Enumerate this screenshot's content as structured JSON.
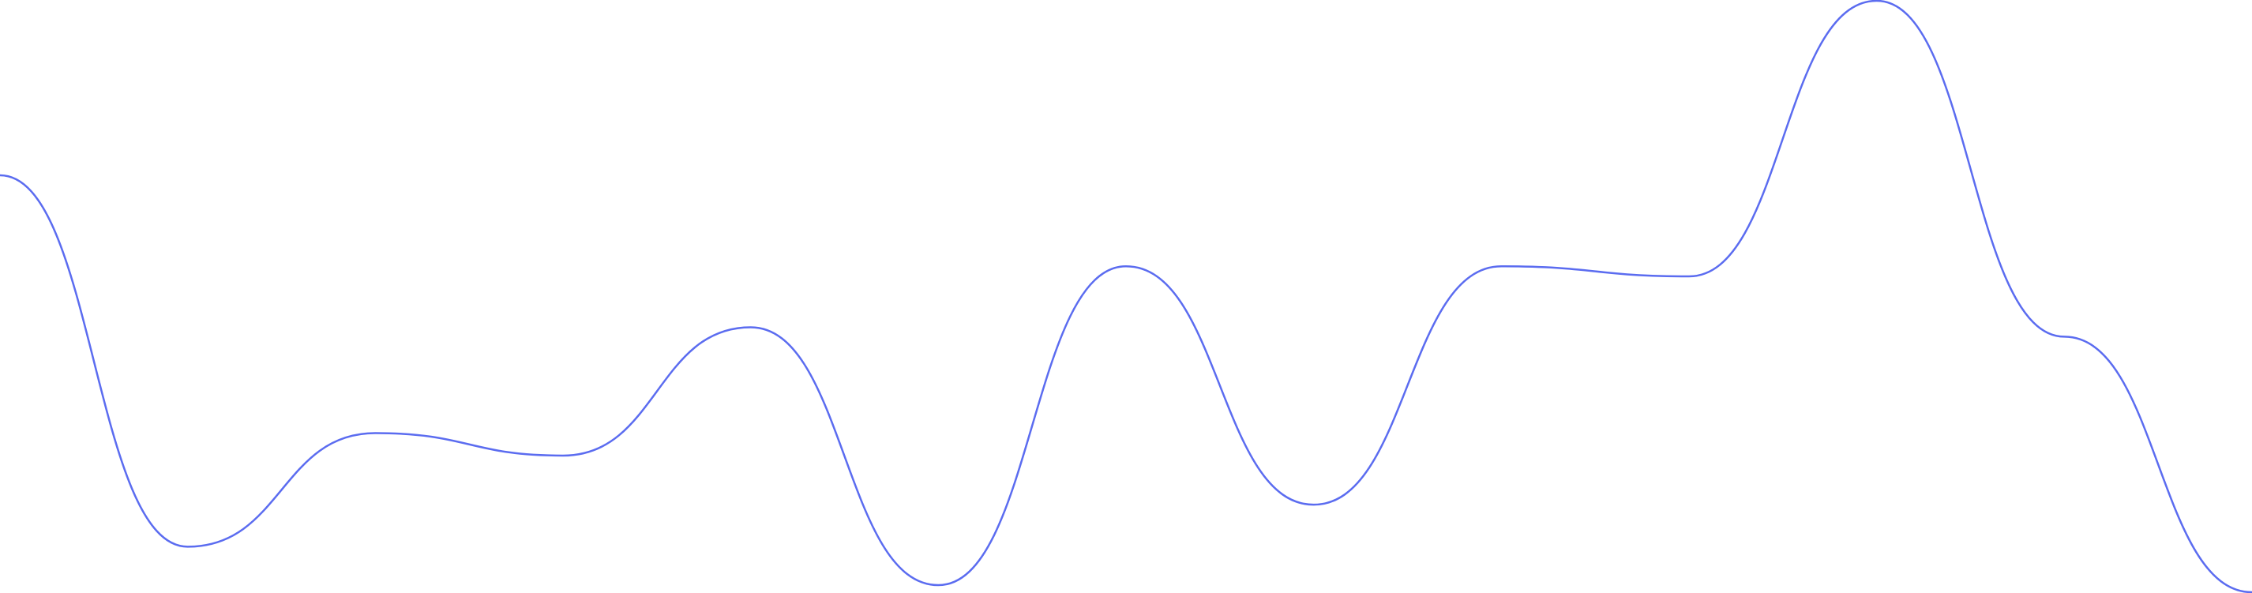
{
  "chart_data": {
    "type": "line",
    "smooth": true,
    "x": [
      0,
      1,
      2,
      3,
      4,
      5,
      6,
      7,
      8,
      9,
      10,
      11,
      12,
      13,
      14
    ],
    "series": [
      {
        "values": [
          0.705,
          0.077,
          0.269,
          0.231,
          0.448,
          0.012,
          0.551,
          0.148,
          0.551,
          0.534,
          1.0,
          0.432,
          0.0,
          0.0,
          0.0
        ],
        "color": "#5b6cf0"
      }
    ],
    "ylim": [
      0,
      1
    ],
    "xlim": [
      0,
      14
    ],
    "grid": false,
    "axes_visible": false,
    "legend": "none"
  }
}
